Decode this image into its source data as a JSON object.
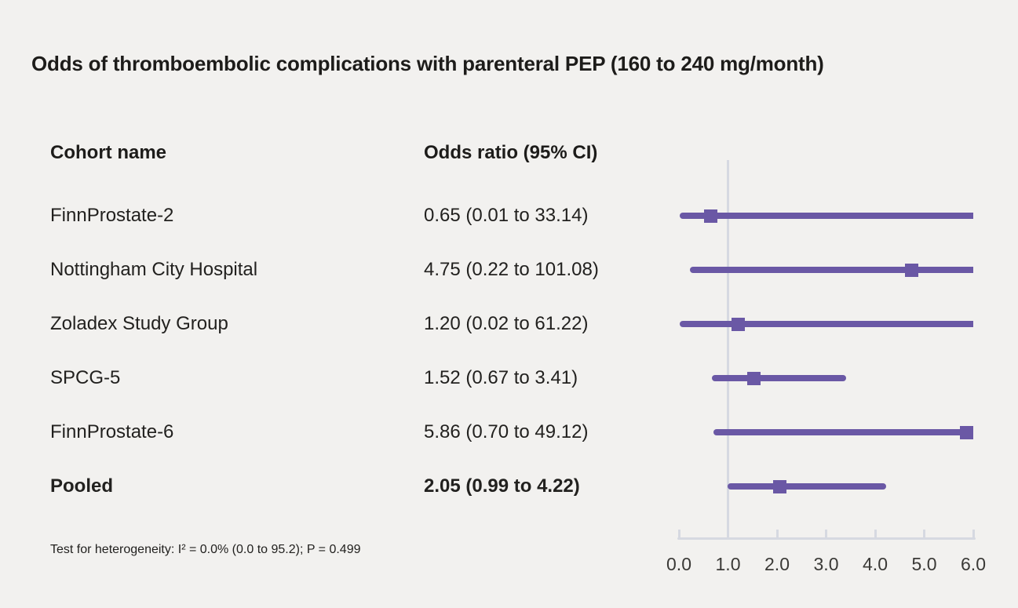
{
  "figure": {
    "title": "Odds of thromboembolic complications with parenteral PEP (160 to 240 mg/month)",
    "columns": {
      "cohort": "Cohort name",
      "odds_ratio": "Odds ratio (95% CI)"
    },
    "footnote": "Test for heterogeneity: I² = 0.0% (0.0 to 95.2); P = 0.499"
  },
  "chart_data": {
    "type": "scatter",
    "subtype": "forest-plot",
    "title": "Odds of thromboembolic complications with parenteral PEP (160 to 240 mg/month)",
    "xlabel": "Odds ratio",
    "ylabel": "Cohort name",
    "xlim": [
      0.0,
      6.0
    ],
    "x_ticks": [
      0.0,
      1.0,
      2.0,
      3.0,
      4.0,
      5.0,
      6.0
    ],
    "x_tick_labels": [
      "0.0",
      "1.0",
      "2.0",
      "3.0",
      "4.0",
      "5.0",
      "6.0"
    ],
    "reference_line_x": 1.0,
    "grid": false,
    "legend": "none",
    "rows": [
      {
        "label": "FinnProstate-2",
        "or_text": "0.65 (0.01 to 33.14)",
        "estimate": 0.65,
        "ci_low": 0.01,
        "ci_high": 33.14,
        "bold": false
      },
      {
        "label": "Nottingham City Hospital",
        "or_text": "4.75 (0.22 to 101.08)",
        "estimate": 4.75,
        "ci_low": 0.22,
        "ci_high": 101.08,
        "bold": false
      },
      {
        "label": "Zoladex Study Group",
        "or_text": "1.20 (0.02 to 61.22)",
        "estimate": 1.2,
        "ci_low": 0.02,
        "ci_high": 61.22,
        "bold": false
      },
      {
        "label": "SPCG-5",
        "or_text": "1.52 (0.67 to 3.41)",
        "estimate": 1.52,
        "ci_low": 0.67,
        "ci_high": 3.41,
        "bold": false
      },
      {
        "label": "FinnProstate-6",
        "or_text": "5.86 (0.70 to 49.12)",
        "estimate": 5.86,
        "ci_low": 0.7,
        "ci_high": 49.12,
        "bold": false
      },
      {
        "label": "Pooled",
        "or_text": "2.05 (0.99 to 4.22)",
        "estimate": 2.05,
        "ci_low": 0.99,
        "ci_high": 4.22,
        "bold": true
      }
    ],
    "colors": {
      "marker": "#6a58a5",
      "ci_line": "#6a58a5",
      "reference_line": "#d6d9e1",
      "axis": "#d6d9e1",
      "background": "#f2f1ef",
      "text": "#22211f"
    }
  }
}
